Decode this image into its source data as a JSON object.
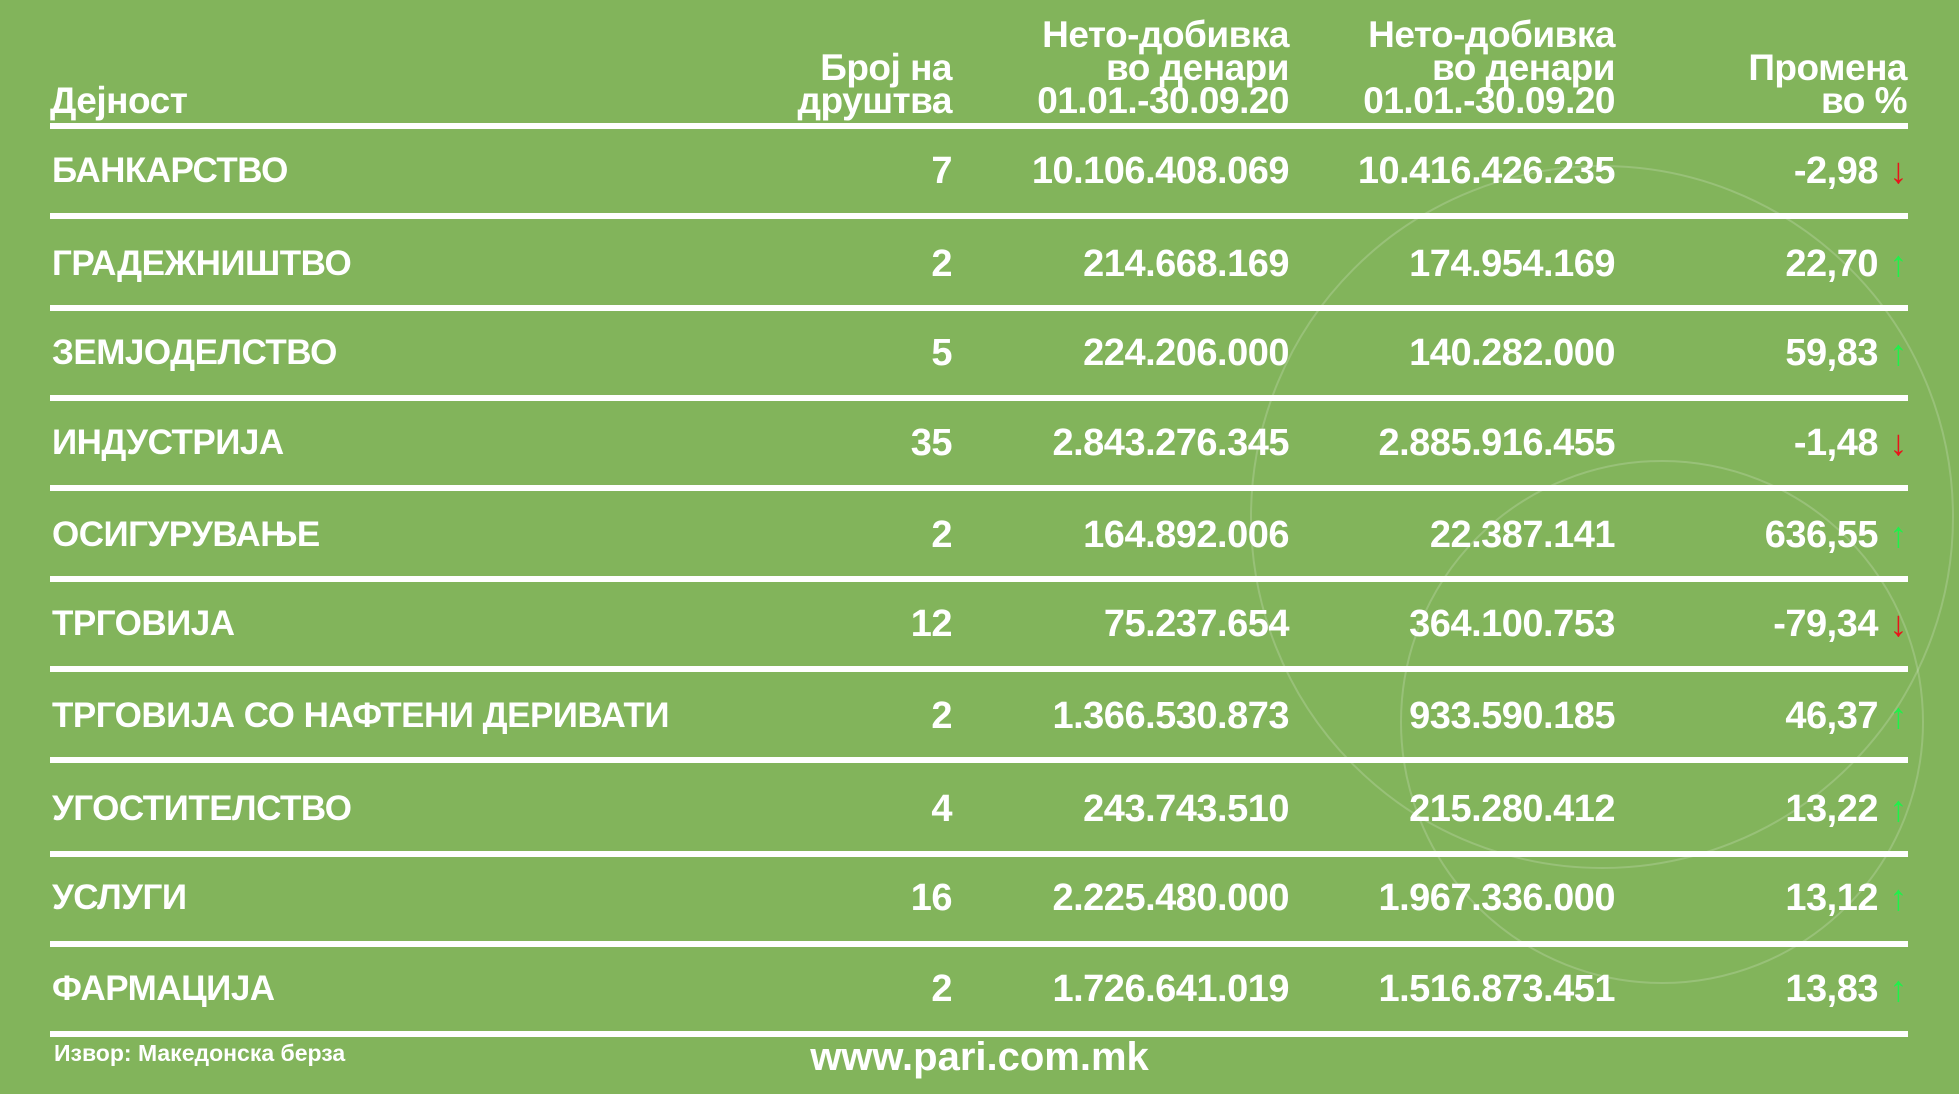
{
  "header": {
    "col0": "Дејност",
    "col1": [
      "Број на",
      "друштва"
    ],
    "col2": [
      "Нето-добивка",
      "во денари",
      "01.01.-30.09.20"
    ],
    "col3": [
      "Нето-добивка",
      "во денари",
      "01.01.-30.09.20"
    ],
    "col4": [
      "Промена",
      "во %"
    ]
  },
  "rows": [
    {
      "name": "БАНКАРСТВО",
      "count": "7",
      "v1": "10.106.408.069",
      "v2": "10.416.426.235",
      "change": "-2,98",
      "trend": "down"
    },
    {
      "name": "ГРАДЕЖНИШТВО",
      "count": "2",
      "v1": "214.668.169",
      "v2": "174.954.169",
      "change": "22,70",
      "trend": "up"
    },
    {
      "name": "ЗЕМЈОДЕЛСТВО",
      "count": "5",
      "v1": "224.206.000",
      "v2": "140.282.000",
      "change": "59,83",
      "trend": "up"
    },
    {
      "name": "ИНДУСТРИЈА",
      "count": "35",
      "v1": "2.843.276.345",
      "v2": "2.885.916.455",
      "change": "-1,48",
      "trend": "down"
    },
    {
      "name": "ОСИГУРУВАЊЕ",
      "count": "2",
      "v1": "164.892.006",
      "v2": "22.387.141",
      "change": "636,55",
      "trend": "up"
    },
    {
      "name": "ТРГОВИЈА",
      "count": "12",
      "v1": "75.237.654",
      "v2": "364.100.753",
      "change": "-79,34",
      "trend": "down"
    },
    {
      "name": "ТРГОВИЈА СО НАФТЕНИ ДЕРИВАТИ",
      "count": "2",
      "v1": "1.366.530.873",
      "v2": "933.590.185",
      "change": "46,37",
      "trend": "up"
    },
    {
      "name": "УГОСТИТЕЛСТВО",
      "count": "4",
      "v1": "243.743.510",
      "v2": "215.280.412",
      "change": "13,22",
      "trend": "up"
    },
    {
      "name": "УСЛУГИ",
      "count": "16",
      "v1": "2.225.480.000",
      "v2": "1.967.336.000",
      "change": "13,12",
      "trend": "up"
    },
    {
      "name": "ФАРМАЦИЈА",
      "count": "2",
      "v1": "1.726.641.019",
      "v2": "1.516.873.451",
      "change": "13,83",
      "trend": "up"
    }
  ],
  "icons": {
    "up": "↑",
    "down": "↓"
  },
  "colors": {
    "background": "#82b45b",
    "up": "#1ef24a",
    "down": "#e8141b"
  },
  "footer": {
    "source": "Извор: Македонска берза",
    "url": "www.pari.com.mk"
  }
}
